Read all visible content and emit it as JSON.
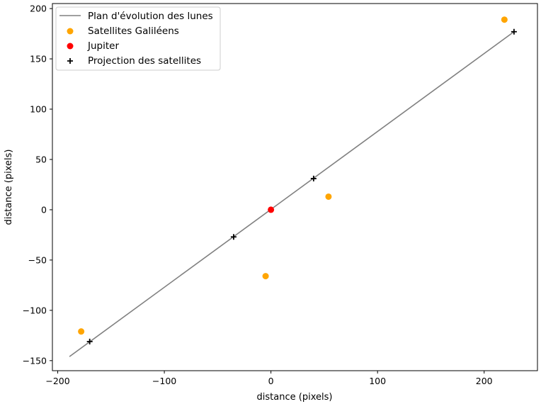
{
  "chart_data": {
    "type": "scatter",
    "title": "",
    "xlabel": "distance (pixels)",
    "ylabel": "distance (pixels)",
    "xlim": [
      -205,
      250
    ],
    "ylim": [
      -160,
      205
    ],
    "xticks": [
      -200,
      -100,
      0,
      100,
      200
    ],
    "yticks": [
      -150,
      -100,
      -50,
      0,
      50,
      100,
      150,
      200
    ],
    "xtick_labels": [
      "−200",
      "−100",
      "0",
      "100",
      "200"
    ],
    "ytick_labels": [
      "−150",
      "−100",
      "−50",
      "0",
      "50",
      "100",
      "150",
      "200"
    ],
    "grid": false,
    "legend_position": "top-left",
    "series": [
      {
        "name": "Plan d'évolution des lunes",
        "kind": "line",
        "color": "#808080",
        "x": [
          -189,
          228
        ],
        "y": [
          -146,
          177
        ]
      },
      {
        "name": "Satellites Galiléens",
        "kind": "scatter",
        "marker": "circle",
        "color": "#FFA500",
        "x": [
          -178,
          -5,
          54,
          219
        ],
        "y": [
          -121,
          -66,
          13,
          189
        ]
      },
      {
        "name": "Jupiter",
        "kind": "scatter",
        "marker": "circle",
        "color": "#FF0000",
        "x": [
          0
        ],
        "y": [
          0
        ]
      },
      {
        "name": "Projection des satellites",
        "kind": "scatter",
        "marker": "plus",
        "color": "#000000",
        "x": [
          -170,
          -35,
          40,
          228
        ],
        "y": [
          -131,
          -27,
          31,
          177
        ]
      }
    ]
  }
}
